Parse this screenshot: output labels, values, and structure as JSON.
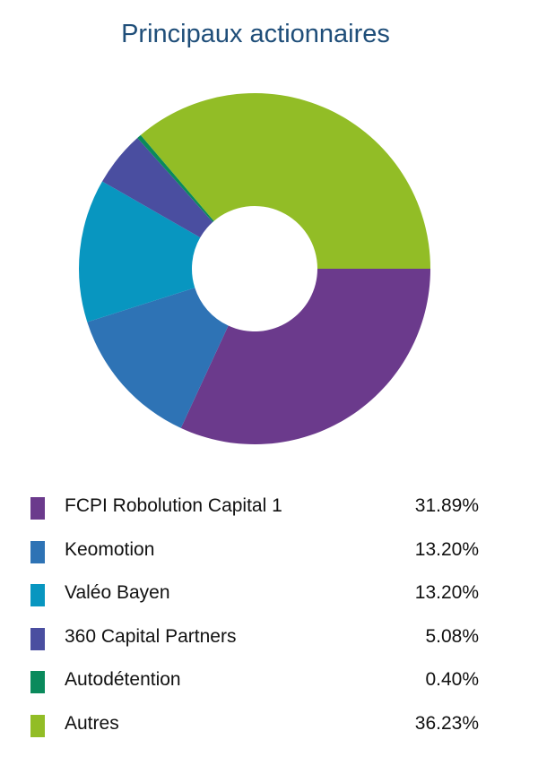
{
  "chart_data": {
    "type": "pie",
    "title": "Principaux actionnaires",
    "categories": [
      "FCPI Robolution Capital 1",
      "Keomotion",
      "Valéo Bayen",
      "360 Capital Partners",
      "Autodétention",
      "Autres"
    ],
    "values": [
      31.89,
      13.2,
      13.2,
      5.08,
      0.4,
      36.23
    ],
    "value_labels": [
      "31.89%",
      "13.20%",
      "13.20%",
      "5.08%",
      "0.40%",
      "36.23%"
    ],
    "colors": [
      "#6b3a8c",
      "#2e73b5",
      "#0896c0",
      "#4a4ea0",
      "#0a8a5c",
      "#92bd26"
    ],
    "hole": true,
    "legend_position": "bottom"
  }
}
